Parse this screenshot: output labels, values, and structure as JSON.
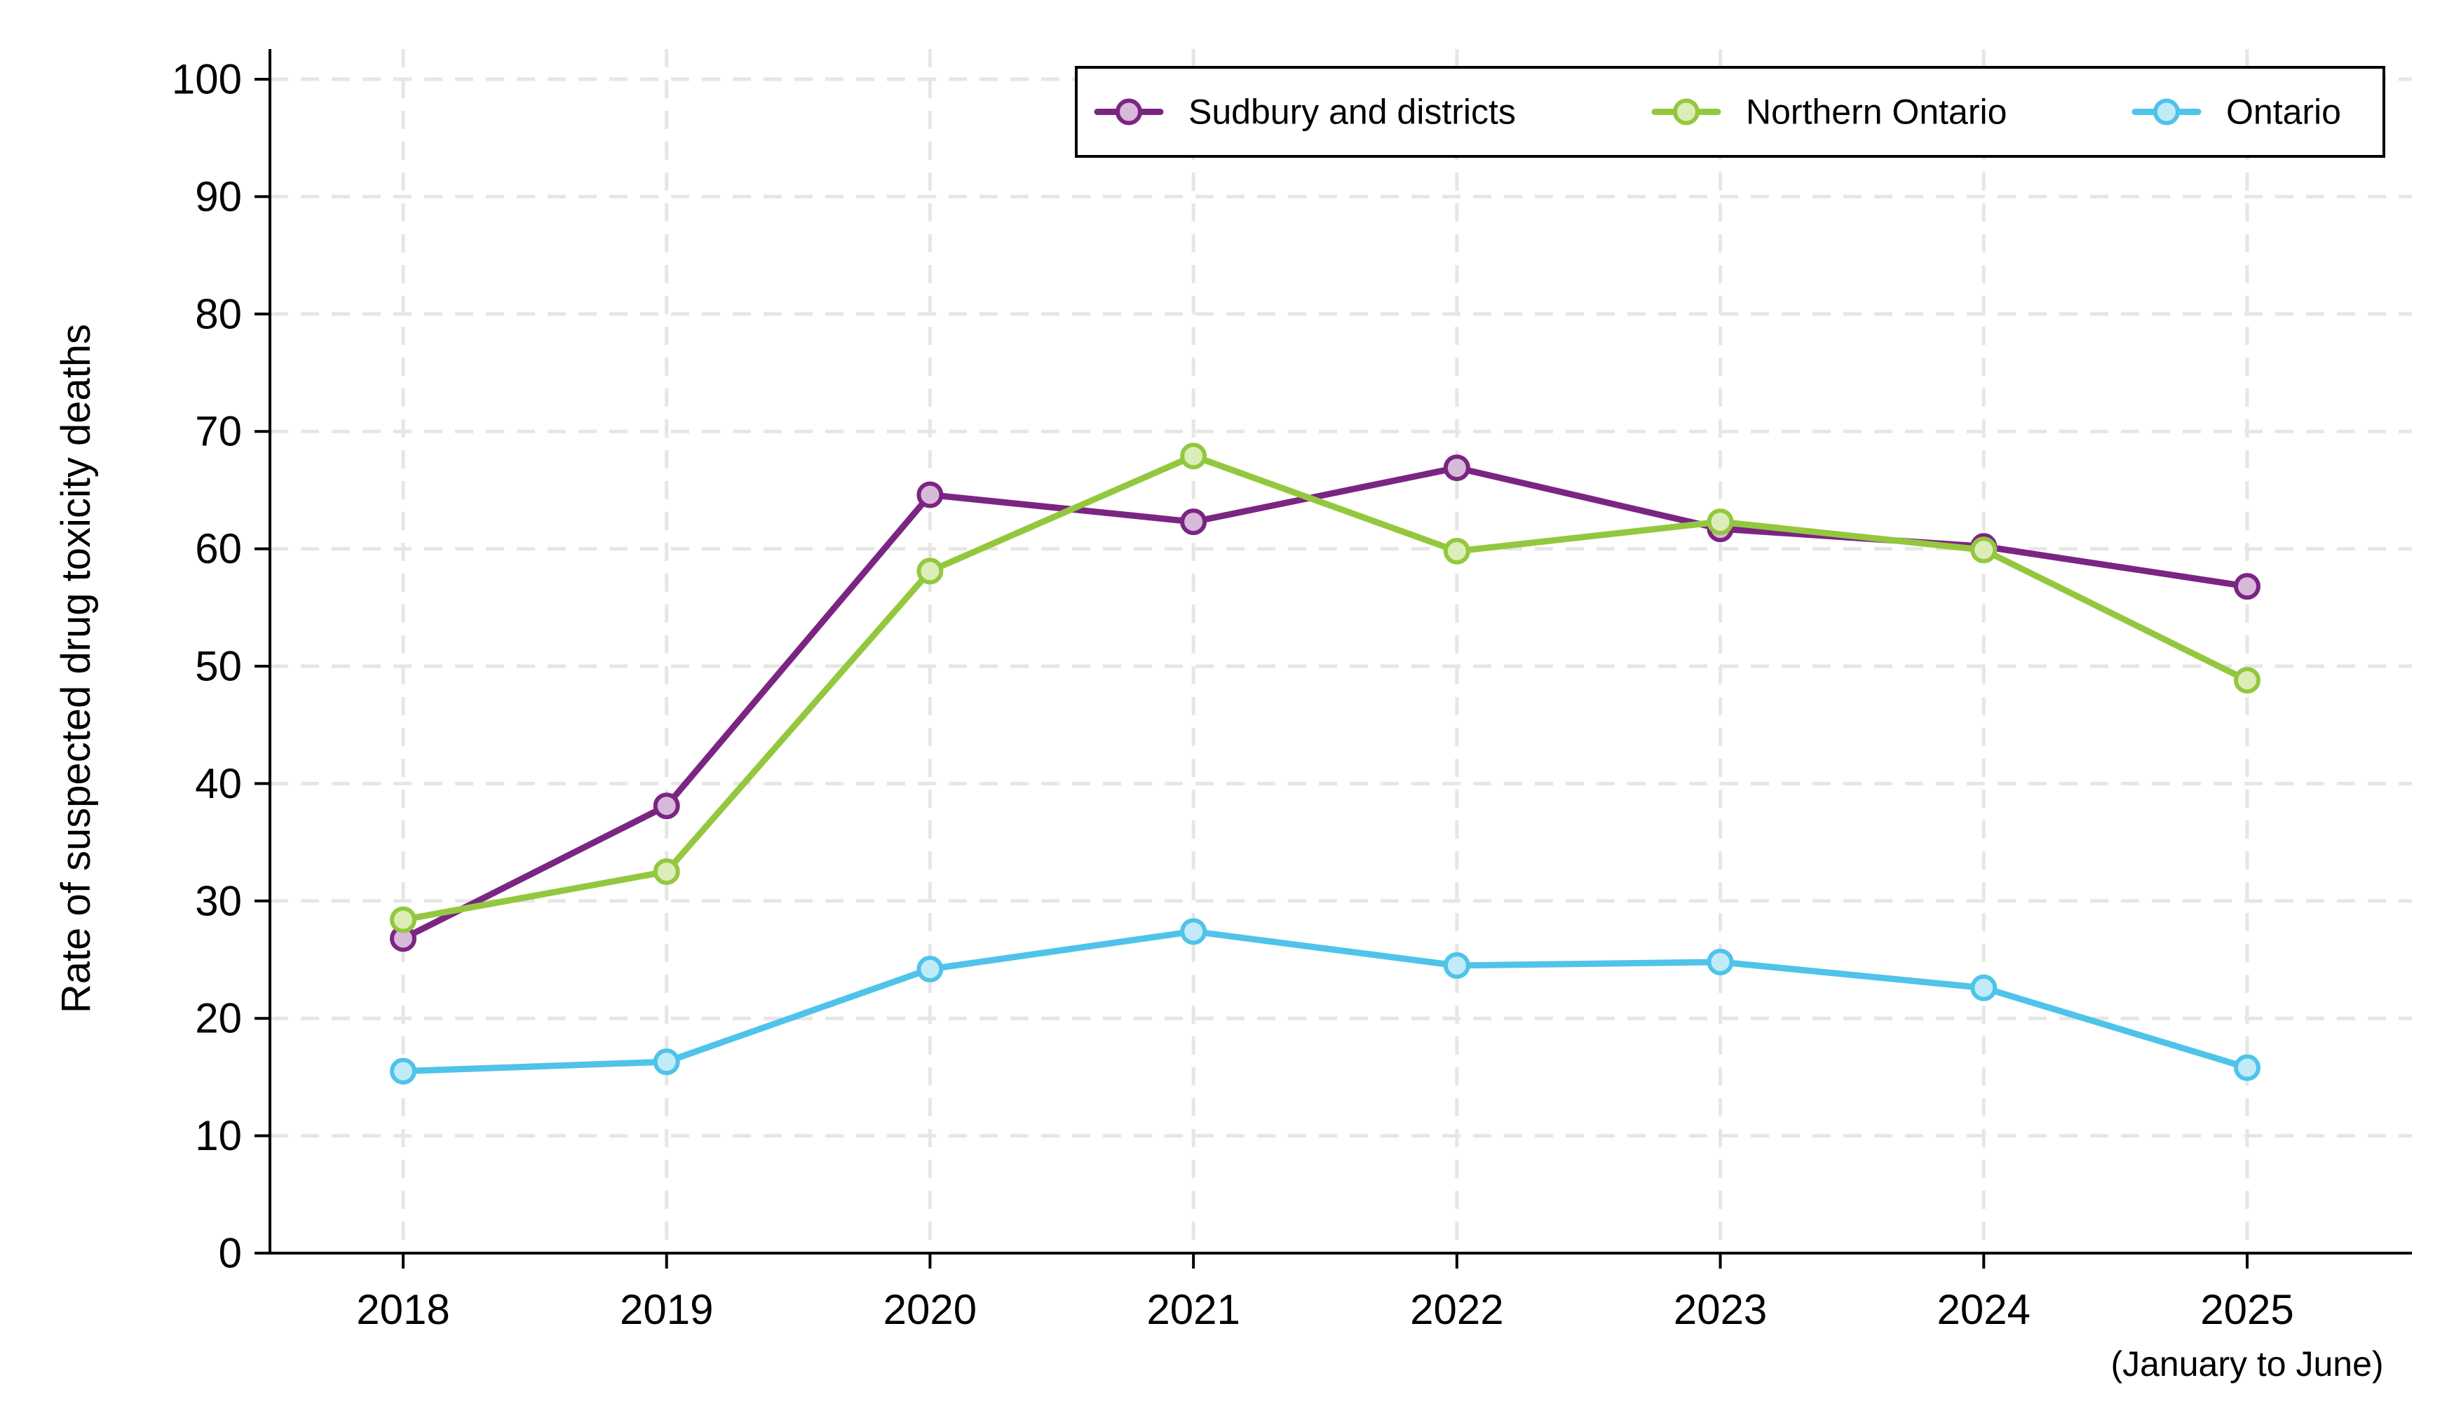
{
  "chart_data": {
    "type": "line",
    "title": "",
    "xlabel": "",
    "ylabel": "Rate of suspected drug toxicity deaths",
    "categories": [
      "2018",
      "2019",
      "2020",
      "2021",
      "2022",
      "2023",
      "2024",
      "2025"
    ],
    "x_note": "(January to June)",
    "ylim": [
      0,
      100
    ],
    "yticks": [
      0,
      10,
      20,
      30,
      40,
      50,
      60,
      70,
      80,
      90,
      100
    ],
    "grid": true,
    "legend_position": "top-right",
    "series": [
      {
        "name": "Sudbury and districts",
        "color": "#7b2583",
        "marker_fill": "#d7b9da",
        "values": [
          26.8,
          38.1,
          64.6,
          62.3,
          66.9,
          61.7,
          60.2,
          56.8
        ]
      },
      {
        "name": "Northern Ontario",
        "color": "#93c83e",
        "marker_fill": "#dcedb9",
        "values": [
          28.4,
          32.5,
          58.1,
          67.9,
          59.8,
          62.3,
          59.9,
          48.8
        ]
      },
      {
        "name": "Ontario",
        "color": "#4fc3ea",
        "marker_fill": "#c2ebf8",
        "values": [
          15.5,
          16.3,
          24.2,
          27.4,
          24.5,
          24.8,
          22.6,
          15.8
        ]
      }
    ]
  }
}
